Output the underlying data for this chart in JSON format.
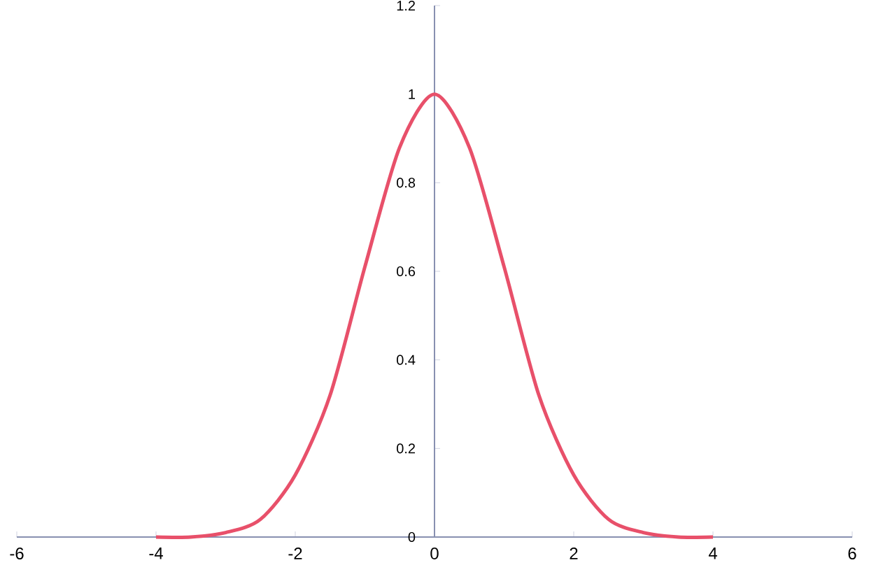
{
  "chart_data": {
    "type": "line",
    "color": "#e8506a",
    "x": [
      -4,
      -3.5,
      -3,
      -2.5,
      -2,
      -1.5,
      -1,
      -0.5,
      0,
      0.5,
      1,
      1.5,
      2,
      2.5,
      3,
      3.5,
      4
    ],
    "values": [
      0,
      0,
      0.01,
      0.04,
      0.14,
      0.32,
      0.61,
      0.88,
      1,
      0.88,
      0.61,
      0.32,
      0.14,
      0.04,
      0.01,
      0,
      0
    ],
    "xlim": [
      -6,
      6
    ],
    "ylim": [
      0,
      1.2
    ],
    "xticks": [
      -6,
      -4,
      -2,
      0,
      2,
      4,
      6
    ],
    "yticks": [
      0,
      0.2,
      0.4,
      0.6,
      0.8,
      1,
      1.2
    ],
    "grid": false,
    "marker": "none",
    "line_style": "solid"
  }
}
